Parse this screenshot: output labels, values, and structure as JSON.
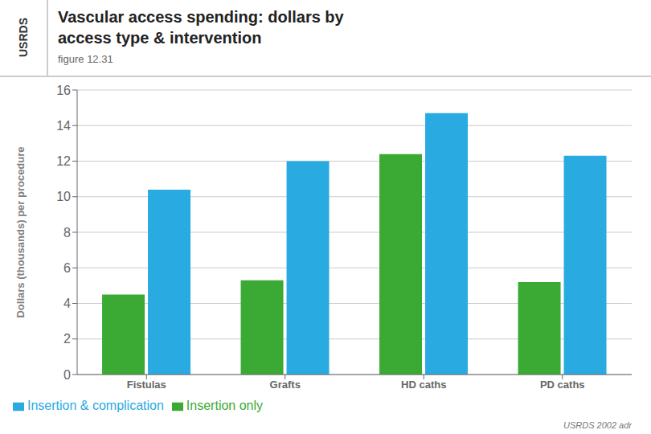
{
  "chart_data": {
    "type": "bar",
    "title": "Vascular access spending: dollars by\naccess type & intervention",
    "subtitle": "figure 12.31",
    "annotations": [
      "USRDS",
      "USRDS 2002 adr"
    ],
    "categories": [
      "Fistulas",
      "Grafts",
      "HD caths",
      "PD caths"
    ],
    "series": [
      {
        "name": "Insertion only",
        "color": "#3aaa35",
        "values": [
          4.5,
          5.3,
          12.4,
          5.2
        ]
      },
      {
        "name": "Insertion & complication",
        "color": "#29abe2",
        "values": [
          10.4,
          12.0,
          14.7,
          12.3
        ]
      }
    ],
    "ylabel": "Dollars (thousands) per procedure",
    "ylim": [
      0,
      16
    ],
    "yticks": [
      0,
      2,
      4,
      6,
      8,
      10,
      12,
      14,
      16
    ],
    "grid": true,
    "legend": "lower left"
  }
}
